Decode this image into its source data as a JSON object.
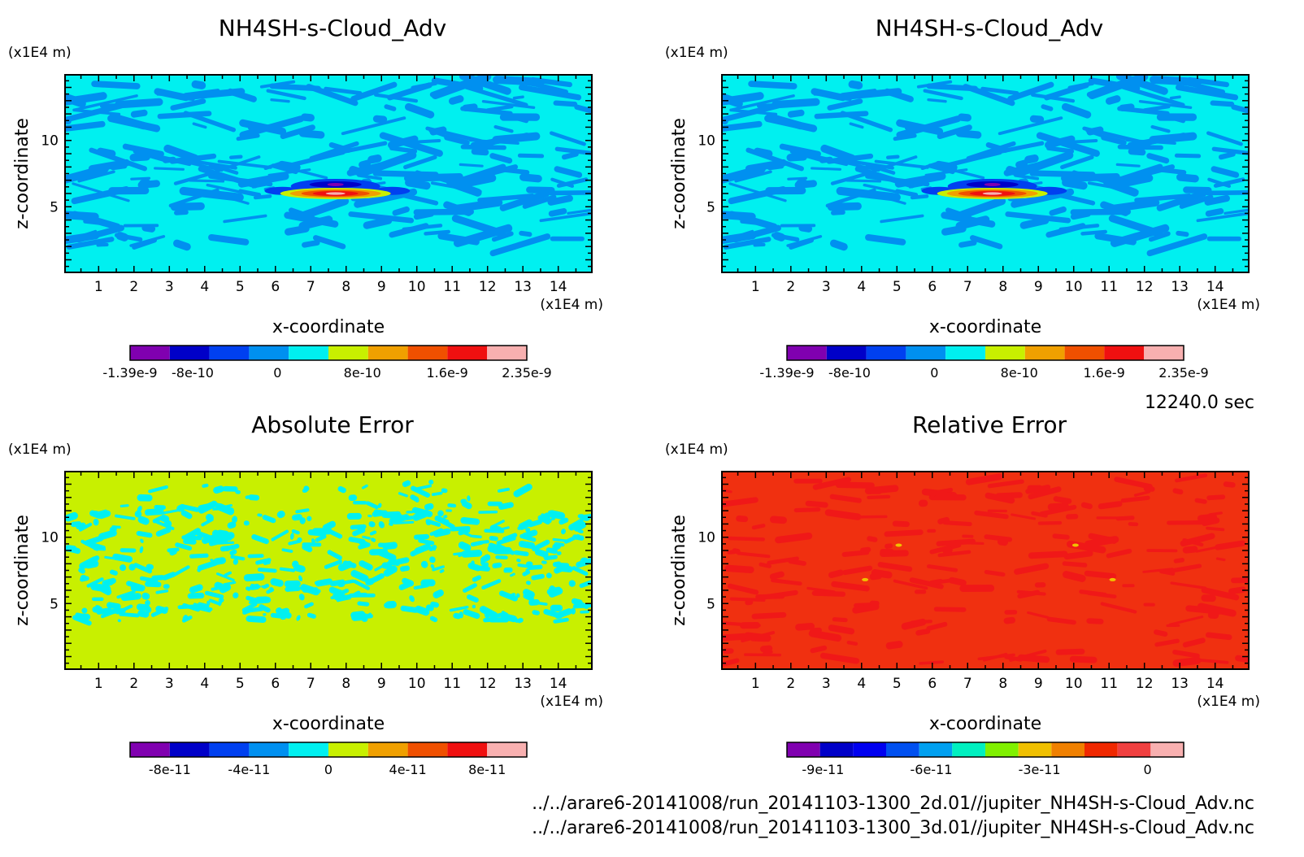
{
  "time_label": "12240.0 sec",
  "files": [
    "../../arare6-20141008/run_20141103-1300_2d.01//jupiter_NH4SH-s-Cloud_Adv.nc",
    "../../arare6-20141008/run_20141103-1300_3d.01//jupiter_NH4SH-s-Cloud_Adv.nc"
  ],
  "chart_data": [
    {
      "type": "heatmap",
      "title": "NH4SH-s-Cloud_Adv",
      "xlabel": "x-coordinate",
      "ylabel": "z-coordinate",
      "x_unit": "(x1E4 m)",
      "y_unit": "(x1E4 m)",
      "x_ticks": [
        1,
        2,
        3,
        4,
        5,
        6,
        7,
        8,
        9,
        10,
        11,
        12,
        13,
        14
      ],
      "y_ticks": [
        5,
        10
      ],
      "xlim": [
        0.05,
        14.95
      ],
      "ylim": [
        0.05,
        14.95
      ],
      "background_color": "#00f0f0",
      "pattern_color": "#0090f0",
      "feature": "peak",
      "colorbar": {
        "colors": [
          "#8000b0",
          "#0000c8",
          "#0040f0",
          "#0090f0",
          "#00f0f0",
          "#c8f000",
          "#f0a000",
          "#f05000",
          "#f01010",
          "#f8b0b0"
        ],
        "tick_labels": [
          "-1.39e-9",
          "-8e-10",
          "0",
          "8e-10",
          "1.6e-9",
          "2.35e-9"
        ],
        "tick_values": [
          -1.39e-09,
          -8e-10,
          0,
          8e-10,
          1.6e-09,
          2.35e-09
        ],
        "range": [
          -1.39e-09,
          2.35e-09
        ]
      }
    },
    {
      "type": "heatmap",
      "title": "NH4SH-s-Cloud_Adv",
      "xlabel": "x-coordinate",
      "ylabel": "z-coordinate",
      "x_unit": "(x1E4 m)",
      "y_unit": "(x1E4 m)",
      "x_ticks": [
        1,
        2,
        3,
        4,
        5,
        6,
        7,
        8,
        9,
        10,
        11,
        12,
        13,
        14
      ],
      "y_ticks": [
        5,
        10
      ],
      "xlim": [
        0.05,
        14.95
      ],
      "ylim": [
        0.05,
        14.95
      ],
      "background_color": "#00f0f0",
      "pattern_color": "#0090f0",
      "feature": "peak",
      "colorbar": {
        "colors": [
          "#8000b0",
          "#0000c8",
          "#0040f0",
          "#0090f0",
          "#00f0f0",
          "#c8f000",
          "#f0a000",
          "#f05000",
          "#f01010",
          "#f8b0b0"
        ],
        "tick_labels": [
          "-1.39e-9",
          "-8e-10",
          "0",
          "8e-10",
          "1.6e-9",
          "2.35e-9"
        ],
        "tick_values": [
          -1.39e-09,
          -8e-10,
          0,
          8e-10,
          1.6e-09,
          2.35e-09
        ],
        "range": [
          -1.39e-09,
          2.35e-09
        ]
      }
    },
    {
      "type": "heatmap",
      "title": "Absolute Error",
      "xlabel": "x-coordinate",
      "ylabel": "z-coordinate",
      "x_unit": "(x1E4 m)",
      "y_unit": "(x1E4 m)",
      "x_ticks": [
        1,
        2,
        3,
        4,
        5,
        6,
        7,
        8,
        9,
        10,
        11,
        12,
        13,
        14
      ],
      "y_ticks": [
        5,
        10
      ],
      "xlim": [
        0.05,
        14.95
      ],
      "ylim": [
        0.05,
        14.95
      ],
      "background_color": "#c8f000",
      "pattern_color": "#00f0f0",
      "feature": "blobs",
      "colorbar": {
        "colors": [
          "#8000b0",
          "#0000c8",
          "#0040f0",
          "#0090f0",
          "#00f0f0",
          "#c8f000",
          "#f0a000",
          "#f05000",
          "#f01010",
          "#f8b0b0"
        ],
        "tick_labels": [
          "-8e-11",
          "-4e-11",
          "0",
          "4e-11",
          "8e-11"
        ],
        "tick_values": [
          -8e-11,
          -4e-11,
          0,
          4e-11,
          8e-11
        ],
        "range": [
          -1e-10,
          1e-10
        ]
      }
    },
    {
      "type": "heatmap",
      "title": "Relative Error",
      "xlabel": "x-coordinate",
      "ylabel": "z-coordinate",
      "x_unit": "(x1E4 m)",
      "y_unit": "(x1E4 m)",
      "x_ticks": [
        1,
        2,
        3,
        4,
        5,
        6,
        7,
        8,
        9,
        10,
        11,
        12,
        13,
        14
      ],
      "y_ticks": [
        5,
        10
      ],
      "xlim": [
        0.05,
        14.95
      ],
      "ylim": [
        0.05,
        14.95
      ],
      "background_color": "#f03010",
      "pattern_color": "#f01818",
      "feature": "dots",
      "colorbar": {
        "colors": [
          "#8000b0",
          "#0000c8",
          "#0000f0",
          "#0050f0",
          "#00a0f0",
          "#00f0c0",
          "#80f000",
          "#f0c000",
          "#f08000",
          "#f02800",
          "#f04040",
          "#f8b0b0"
        ],
        "tick_labels": [
          "-9e-11",
          "-6e-11",
          "-3e-11",
          "0"
        ],
        "tick_values": [
          -9e-11,
          -6e-11,
          -3e-11,
          0
        ],
        "range": [
          -1e-10,
          1e-11
        ]
      }
    }
  ]
}
